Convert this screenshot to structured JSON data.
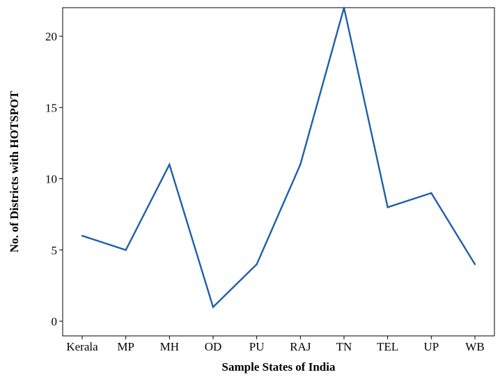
{
  "chart_data": {
    "type": "line",
    "title": "",
    "xlabel": "Sample States of India",
    "ylabel": "No. of Districts with HOTSPOT",
    "categories": [
      "Kerala",
      "MP",
      "MH",
      "OD",
      "PU",
      "RAJ",
      "TN",
      "TEL",
      "UP",
      "WB"
    ],
    "series": [
      {
        "values": [
          6,
          5,
          11,
          1,
          4,
          11,
          22,
          8,
          9,
          4
        ],
        "color": "#1f5fa6"
      }
    ],
    "yticks": [
      0,
      5,
      10,
      15,
      20
    ],
    "ylim": [
      0,
      23
    ],
    "grid": false,
    "legend": "none"
  }
}
